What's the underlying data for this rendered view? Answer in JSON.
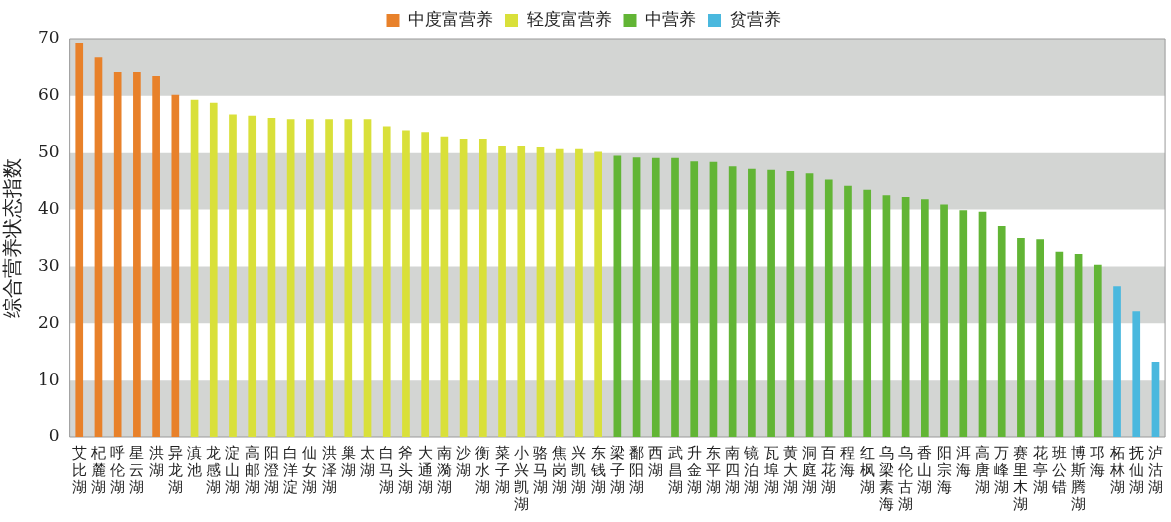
{
  "chart_data": {
    "type": "bar",
    "ylabel": "综合营养状态指数",
    "categories": [
      "艾比湖",
      "杞麓湖",
      "呼伦湖",
      "星云湖",
      "洪湖",
      "异龙湖",
      "滇池",
      "龙感湖",
      "淀山湖",
      "高邮湖",
      "阳澄湖",
      "白洋淀",
      "仙女湖",
      "洪泽湖",
      "巢湖",
      "太湖",
      "白马湖",
      "斧头湖",
      "大通湖",
      "南漪湖",
      "沙湖",
      "衡水湖",
      "菜子湖",
      "小兴凯湖",
      "骆马湖",
      "焦岗湖",
      "兴凯湖",
      "东钱湖",
      "梁子湖",
      "鄱阳湖",
      "西湖",
      "武昌湖",
      "升金湖",
      "东平湖",
      "南四湖",
      "镜泊湖",
      "瓦埠湖",
      "黄大湖",
      "洞庭湖",
      "百花湖",
      "程海",
      "红枫湖",
      "乌梁素海",
      "乌伦古湖",
      "香山湖",
      "阳宗海",
      "洱海",
      "高唐湖",
      "万峰湖",
      "赛里木湖",
      "花亭湖",
      "班公错",
      "博斯腾湖",
      "邛海",
      "柘林湖",
      "抚仙湖",
      "泸沽湖"
    ],
    "series": [
      {
        "name": "中度富营养",
        "color": "#e8812a",
        "values": [
          69.3,
          66.8,
          64.2,
          64.2,
          63.5,
          60.2,
          null,
          null,
          null,
          null,
          null,
          null,
          null,
          null,
          null,
          null,
          null,
          null,
          null,
          null,
          null,
          null,
          null,
          null,
          null,
          null,
          null,
          null,
          null,
          null,
          null,
          null,
          null,
          null,
          null,
          null,
          null,
          null,
          null,
          null,
          null,
          null,
          null,
          null,
          null,
          null,
          null,
          null,
          null,
          null,
          null,
          null,
          null,
          null,
          null,
          null,
          null
        ]
      },
      {
        "name": "轻度富营养",
        "color": "#d9e03a",
        "values": [
          null,
          null,
          null,
          null,
          null,
          null,
          59.3,
          58.8,
          56.7,
          56.5,
          56.1,
          55.9,
          55.9,
          55.9,
          55.9,
          55.9,
          54.6,
          53.9,
          53.6,
          52.8,
          52.4,
          52.4,
          51.2,
          51.2,
          51.0,
          50.7,
          50.7,
          50.2,
          null,
          null,
          null,
          null,
          null,
          null,
          null,
          null,
          null,
          null,
          null,
          null,
          null,
          null,
          null,
          null,
          null,
          null,
          null,
          null,
          null,
          null,
          null,
          null,
          null,
          null,
          null,
          null,
          null
        ]
      },
      {
        "name": "中营养",
        "color": "#62b535",
        "values": [
          null,
          null,
          null,
          null,
          null,
          null,
          null,
          null,
          null,
          null,
          null,
          null,
          null,
          null,
          null,
          null,
          null,
          null,
          null,
          null,
          null,
          null,
          null,
          null,
          null,
          null,
          null,
          null,
          49.5,
          49.2,
          49.1,
          49.1,
          48.5,
          48.4,
          47.6,
          47.2,
          47.0,
          46.8,
          46.4,
          45.3,
          44.2,
          43.5,
          42.5,
          42.2,
          41.8,
          40.9,
          39.9,
          39.6,
          37.1,
          35.0,
          34.8,
          32.6,
          32.2,
          30.3,
          null,
          null,
          null
        ]
      },
      {
        "name": "贫营养",
        "color": "#4ab8de",
        "values": [
          null,
          null,
          null,
          null,
          null,
          null,
          null,
          null,
          null,
          null,
          null,
          null,
          null,
          null,
          null,
          null,
          null,
          null,
          null,
          null,
          null,
          null,
          null,
          null,
          null,
          null,
          null,
          null,
          null,
          null,
          null,
          null,
          null,
          null,
          null,
          null,
          null,
          null,
          null,
          null,
          null,
          null,
          null,
          null,
          null,
          null,
          null,
          null,
          null,
          null,
          null,
          null,
          null,
          null,
          26.5,
          22.1,
          13.2
        ]
      }
    ],
    "ylim": [
      0,
      70
    ],
    "yticks": [
      0,
      10,
      20,
      30,
      40,
      50,
      60,
      70
    ],
    "grid": false,
    "legend": "top",
    "bands": [
      {
        "axis": "y",
        "from": 0,
        "to": 10,
        "color": "#d3d5d3"
      },
      {
        "axis": "y",
        "from": 20,
        "to": 30,
        "color": "#d3d5d3"
      },
      {
        "axis": "y",
        "from": 40,
        "to": 50,
        "color": "#d3d5d3"
      },
      {
        "axis": "y",
        "from": 60,
        "to": 70,
        "color": "#d3d5d3"
      }
    ]
  }
}
